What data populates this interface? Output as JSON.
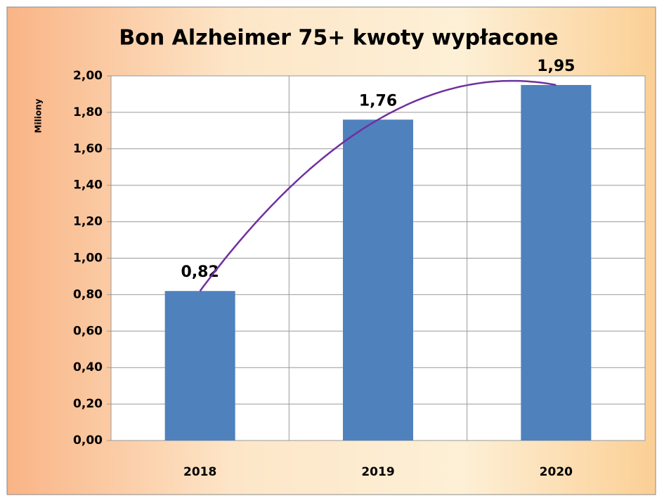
{
  "chart_data": {
    "type": "bar",
    "title": "Bon Alzheimer 75+ kwoty wypłacone",
    "y_label": "Miliony",
    "categories": [
      "2018",
      "2019",
      "2020"
    ],
    "values": [
      0.82,
      1.76,
      1.95
    ],
    "value_labels": [
      "0,82",
      "1,76",
      "1,95"
    ],
    "color": "#4f81bd",
    "ylim": [
      0,
      2
    ],
    "yticks": [
      {
        "value": 0,
        "label": "0,00"
      },
      {
        "value": 0.2,
        "label": "0,20"
      },
      {
        "value": 0.4,
        "label": "0,40"
      },
      {
        "value": 0.6,
        "label": "0,60"
      },
      {
        "value": 0.8,
        "label": "0,80"
      },
      {
        "value": 1,
        "label": "1,00"
      },
      {
        "value": 1.2,
        "label": "1,20"
      },
      {
        "value": 1.4,
        "label": "1,40"
      },
      {
        "value": 1.6,
        "label": "1,60"
      },
      {
        "value": 1.8,
        "label": "1,80"
      },
      {
        "value": 2,
        "label": "2,00"
      }
    ],
    "grid": true,
    "trendline": {
      "kind": "polynomial",
      "color": "#7030a0"
    }
  }
}
